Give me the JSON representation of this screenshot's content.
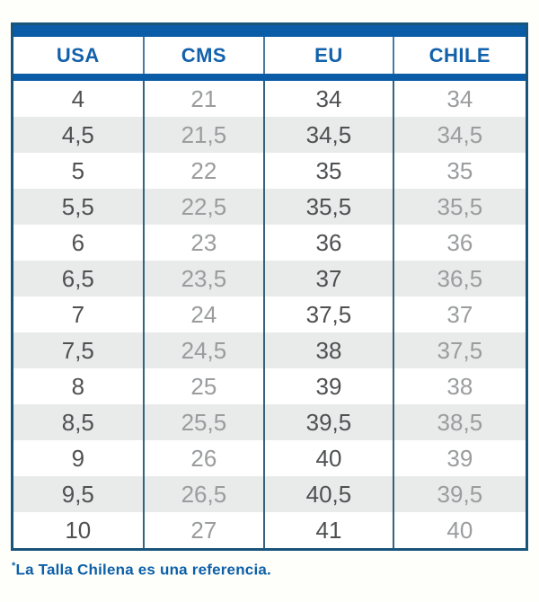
{
  "chart_data": {
    "type": "table",
    "columns": [
      "USA",
      "CMS",
      "EU",
      "CHILE"
    ],
    "rows": [
      [
        "4",
        "21",
        "34",
        "34"
      ],
      [
        "4,5",
        "21,5",
        "34,5",
        "34,5"
      ],
      [
        "5",
        "22",
        "35",
        "35"
      ],
      [
        "5,5",
        "22,5",
        "35,5",
        "35,5"
      ],
      [
        "6",
        "23",
        "36",
        "36"
      ],
      [
        "6,5",
        "23,5",
        "37",
        "36,5"
      ],
      [
        "7",
        "24",
        "37,5",
        "37"
      ],
      [
        "7,5",
        "24,5",
        "38",
        "37,5"
      ],
      [
        "8",
        "25",
        "39",
        "38"
      ],
      [
        "8,5",
        "25,5",
        "39,5",
        "38,5"
      ],
      [
        "9",
        "26",
        "40",
        "39"
      ],
      [
        "9,5",
        "26,5",
        "40,5",
        "39,5"
      ],
      [
        "10",
        "27",
        "41",
        "40"
      ]
    ],
    "footnote": "*La Talla Chilena es una referencia.",
    "layout_hints": {
      "row_striping": "odd-white-even-gray",
      "dark_text_columns": [
        0,
        2
      ],
      "light_text_columns": [
        1,
        3
      ]
    }
  },
  "footnote": {
    "marker": "*",
    "text": "La Talla Chilena es una referencia."
  },
  "colors": {
    "accent_blue_bar": "#0b5ca6",
    "header_text": "#1261aa",
    "outer_border": "#19547b",
    "column_divider": "#33637f",
    "row_alt_background": "#e9eaea",
    "dark_value_text": "#4f5052",
    "light_value_text": "#9a9c9e",
    "footnote_text": "#0d60a8",
    "page_background": "#fefefb"
  }
}
